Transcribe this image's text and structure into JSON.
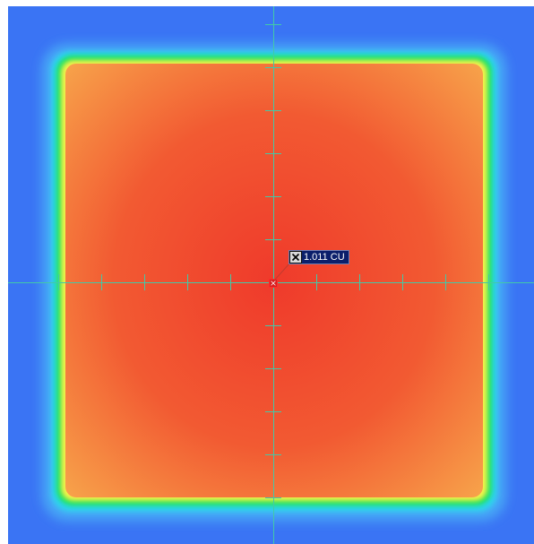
{
  "readout": {
    "value_text": "1.011 CU",
    "icon": "close-icon"
  },
  "colors": {
    "background": "#3a74f4",
    "cyan": "#2fd4ee",
    "green": "#17e35a",
    "yellow": "#f7f24a",
    "orange": "#f89a40",
    "red": "#ef3c2a",
    "crosshair": "#42c9a8",
    "label_bg": "#0b1f6b"
  }
}
